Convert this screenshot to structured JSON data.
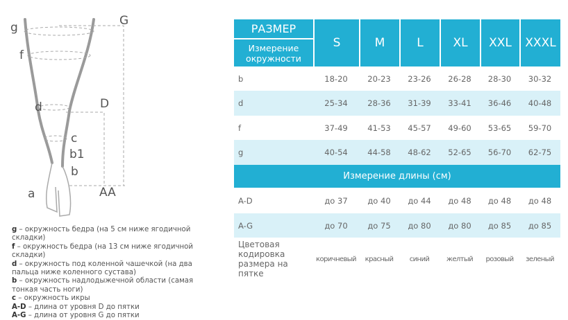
{
  "diagram": {
    "labels": {
      "g": "g",
      "G": "G",
      "f": "f",
      "d": "d",
      "D": "D",
      "c": "c",
      "b1": "b1",
      "b": "b",
      "a": "a",
      "AA": "AA"
    }
  },
  "legend": [
    {
      "key": "g",
      "text": " – окружность бедра (на 5 см ниже ягодичной складки)"
    },
    {
      "key": "f",
      "text": " – окружность бедра (на 13 см ниже ягодичной складки)"
    },
    {
      "key": "d",
      "text": " – окружность под коленной чашечкой (на два пальца ниже коленного сустава)"
    },
    {
      "key": "b",
      "text": " – окружность надлодыжечной области (самая тонкая часть ноги)"
    },
    {
      "key": "c",
      "text": " – окружность икры"
    },
    {
      "key": "A-D",
      "text": " – длина от уровня D до пятки"
    },
    {
      "key": "A-G",
      "text": " – длина от уровня G до пятки"
    }
  ],
  "table": {
    "size_label": "РАЗМЕР",
    "circ_label": "Измерение окружности",
    "sizes": [
      "S",
      "M",
      "L",
      "XL",
      "XXL",
      "XXXL"
    ],
    "circ_rows": [
      {
        "label": "b",
        "values": [
          "18-20",
          "20-23",
          "23-26",
          "26-28",
          "28-30",
          "30-32"
        ]
      },
      {
        "label": "d",
        "values": [
          "25-34",
          "28-36",
          "31-39",
          "33-41",
          "36-46",
          "40-48"
        ]
      },
      {
        "label": "f",
        "values": [
          "37-49",
          "41-53",
          "45-57",
          "49-60",
          "53-65",
          "59-70"
        ]
      },
      {
        "label": "g",
        "values": [
          "40-54",
          "44-58",
          "48-62",
          "52-65",
          "56-70",
          "62-75"
        ]
      }
    ],
    "length_label": "Измерение длины (см)",
    "length_rows": [
      {
        "label": "A-D",
        "values": [
          "до 37",
          "до 40",
          "до 44",
          "до 48",
          "до 48",
          "до 48"
        ]
      },
      {
        "label": "A-G",
        "values": [
          "до 70",
          "до 75",
          "до 80",
          "до 80",
          "до 85",
          "до 85"
        ]
      }
    ],
    "color_label": "Цветовая кодировка размера на пятке",
    "colors": [
      "коричневый",
      "красный",
      "синий",
      "желтый",
      "розовый",
      "зеленый"
    ]
  },
  "colors": {
    "accent": "#22afd3",
    "light": "#d9f1f8"
  }
}
